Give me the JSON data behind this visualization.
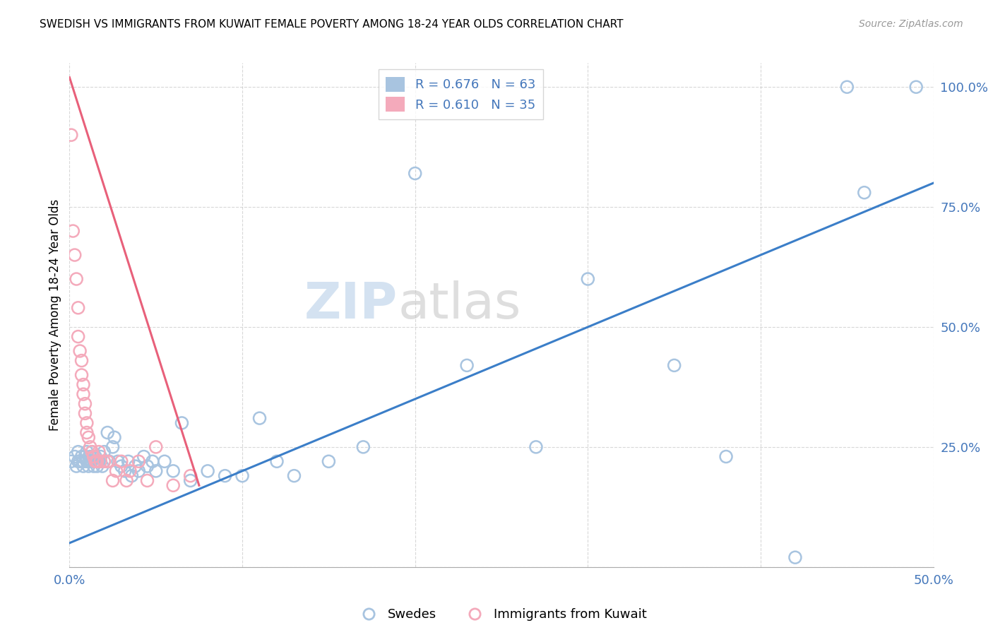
{
  "title": "SWEDISH VS IMMIGRANTS FROM KUWAIT FEMALE POVERTY AMONG 18-24 YEAR OLDS CORRELATION CHART",
  "source": "Source: ZipAtlas.com",
  "ylabel": "Female Poverty Among 18-24 Year Olds",
  "xlim": [
    0.0,
    0.5
  ],
  "ylim": [
    0.0,
    1.05
  ],
  "blue_color": "#A8C4E0",
  "pink_color": "#F4AABB",
  "blue_line_color": "#3B7EC8",
  "pink_line_color": "#E8607A",
  "watermark_zip": "ZIP",
  "watermark_atlas": "atlas",
  "blue_scatter_x": [
    0.001,
    0.003,
    0.004,
    0.005,
    0.005,
    0.006,
    0.007,
    0.008,
    0.008,
    0.009,
    0.01,
    0.01,
    0.011,
    0.012,
    0.012,
    0.013,
    0.013,
    0.014,
    0.015,
    0.015,
    0.016,
    0.017,
    0.018,
    0.019,
    0.02,
    0.02,
    0.022,
    0.023,
    0.025,
    0.026,
    0.028,
    0.03,
    0.032,
    0.034,
    0.036,
    0.038,
    0.04,
    0.043,
    0.045,
    0.048,
    0.05,
    0.055,
    0.06,
    0.065,
    0.07,
    0.08,
    0.09,
    0.1,
    0.11,
    0.12,
    0.13,
    0.15,
    0.17,
    0.2,
    0.23,
    0.27,
    0.3,
    0.35,
    0.38,
    0.42,
    0.45,
    0.46,
    0.49
  ],
  "blue_scatter_y": [
    0.22,
    0.23,
    0.21,
    0.22,
    0.24,
    0.22,
    0.23,
    0.21,
    0.22,
    0.23,
    0.22,
    0.24,
    0.21,
    0.22,
    0.23,
    0.22,
    0.24,
    0.21,
    0.23,
    0.22,
    0.21,
    0.22,
    0.23,
    0.21,
    0.22,
    0.24,
    0.28,
    0.22,
    0.25,
    0.27,
    0.22,
    0.21,
    0.2,
    0.22,
    0.19,
    0.21,
    0.2,
    0.23,
    0.21,
    0.22,
    0.2,
    0.22,
    0.2,
    0.3,
    0.18,
    0.2,
    0.19,
    0.19,
    0.31,
    0.22,
    0.19,
    0.22,
    0.25,
    0.82,
    0.42,
    0.25,
    0.6,
    0.42,
    0.23,
    0.02,
    1.0,
    0.78,
    1.0
  ],
  "pink_scatter_x": [
    0.001,
    0.002,
    0.003,
    0.004,
    0.005,
    0.005,
    0.006,
    0.007,
    0.007,
    0.008,
    0.008,
    0.009,
    0.009,
    0.01,
    0.01,
    0.011,
    0.012,
    0.013,
    0.014,
    0.015,
    0.016,
    0.017,
    0.018,
    0.02,
    0.022,
    0.025,
    0.027,
    0.03,
    0.033,
    0.035,
    0.04,
    0.045,
    0.05,
    0.06,
    0.07
  ],
  "pink_scatter_y": [
    0.9,
    0.7,
    0.65,
    0.6,
    0.54,
    0.48,
    0.45,
    0.43,
    0.4,
    0.38,
    0.36,
    0.34,
    0.32,
    0.3,
    0.28,
    0.27,
    0.25,
    0.24,
    0.23,
    0.22,
    0.22,
    0.24,
    0.22,
    0.22,
    0.22,
    0.18,
    0.2,
    0.22,
    0.18,
    0.2,
    0.22,
    0.18,
    0.25,
    0.17,
    0.19
  ],
  "blue_line_x": [
    0.0,
    0.5
  ],
  "blue_line_y": [
    0.05,
    0.8
  ],
  "pink_line_x": [
    0.0,
    0.075
  ],
  "pink_line_y": [
    1.02,
    0.17
  ],
  "legend_blue_label": "R = 0.676   N = 63",
  "legend_pink_label": "R = 0.610   N = 35",
  "legend_blue_color": "#4477BB",
  "legend_pink_color": "#E8607A",
  "x_tick_positions": [
    0.0,
    0.1,
    0.2,
    0.3,
    0.4,
    0.5
  ],
  "x_tick_labels": [
    "0.0%",
    "",
    "",
    "",
    "",
    "50.0%"
  ],
  "y_tick_positions": [
    0.0,
    0.25,
    0.5,
    0.75,
    1.0
  ],
  "y_tick_labels": [
    "",
    "25.0%",
    "50.0%",
    "75.0%",
    "100.0%"
  ]
}
